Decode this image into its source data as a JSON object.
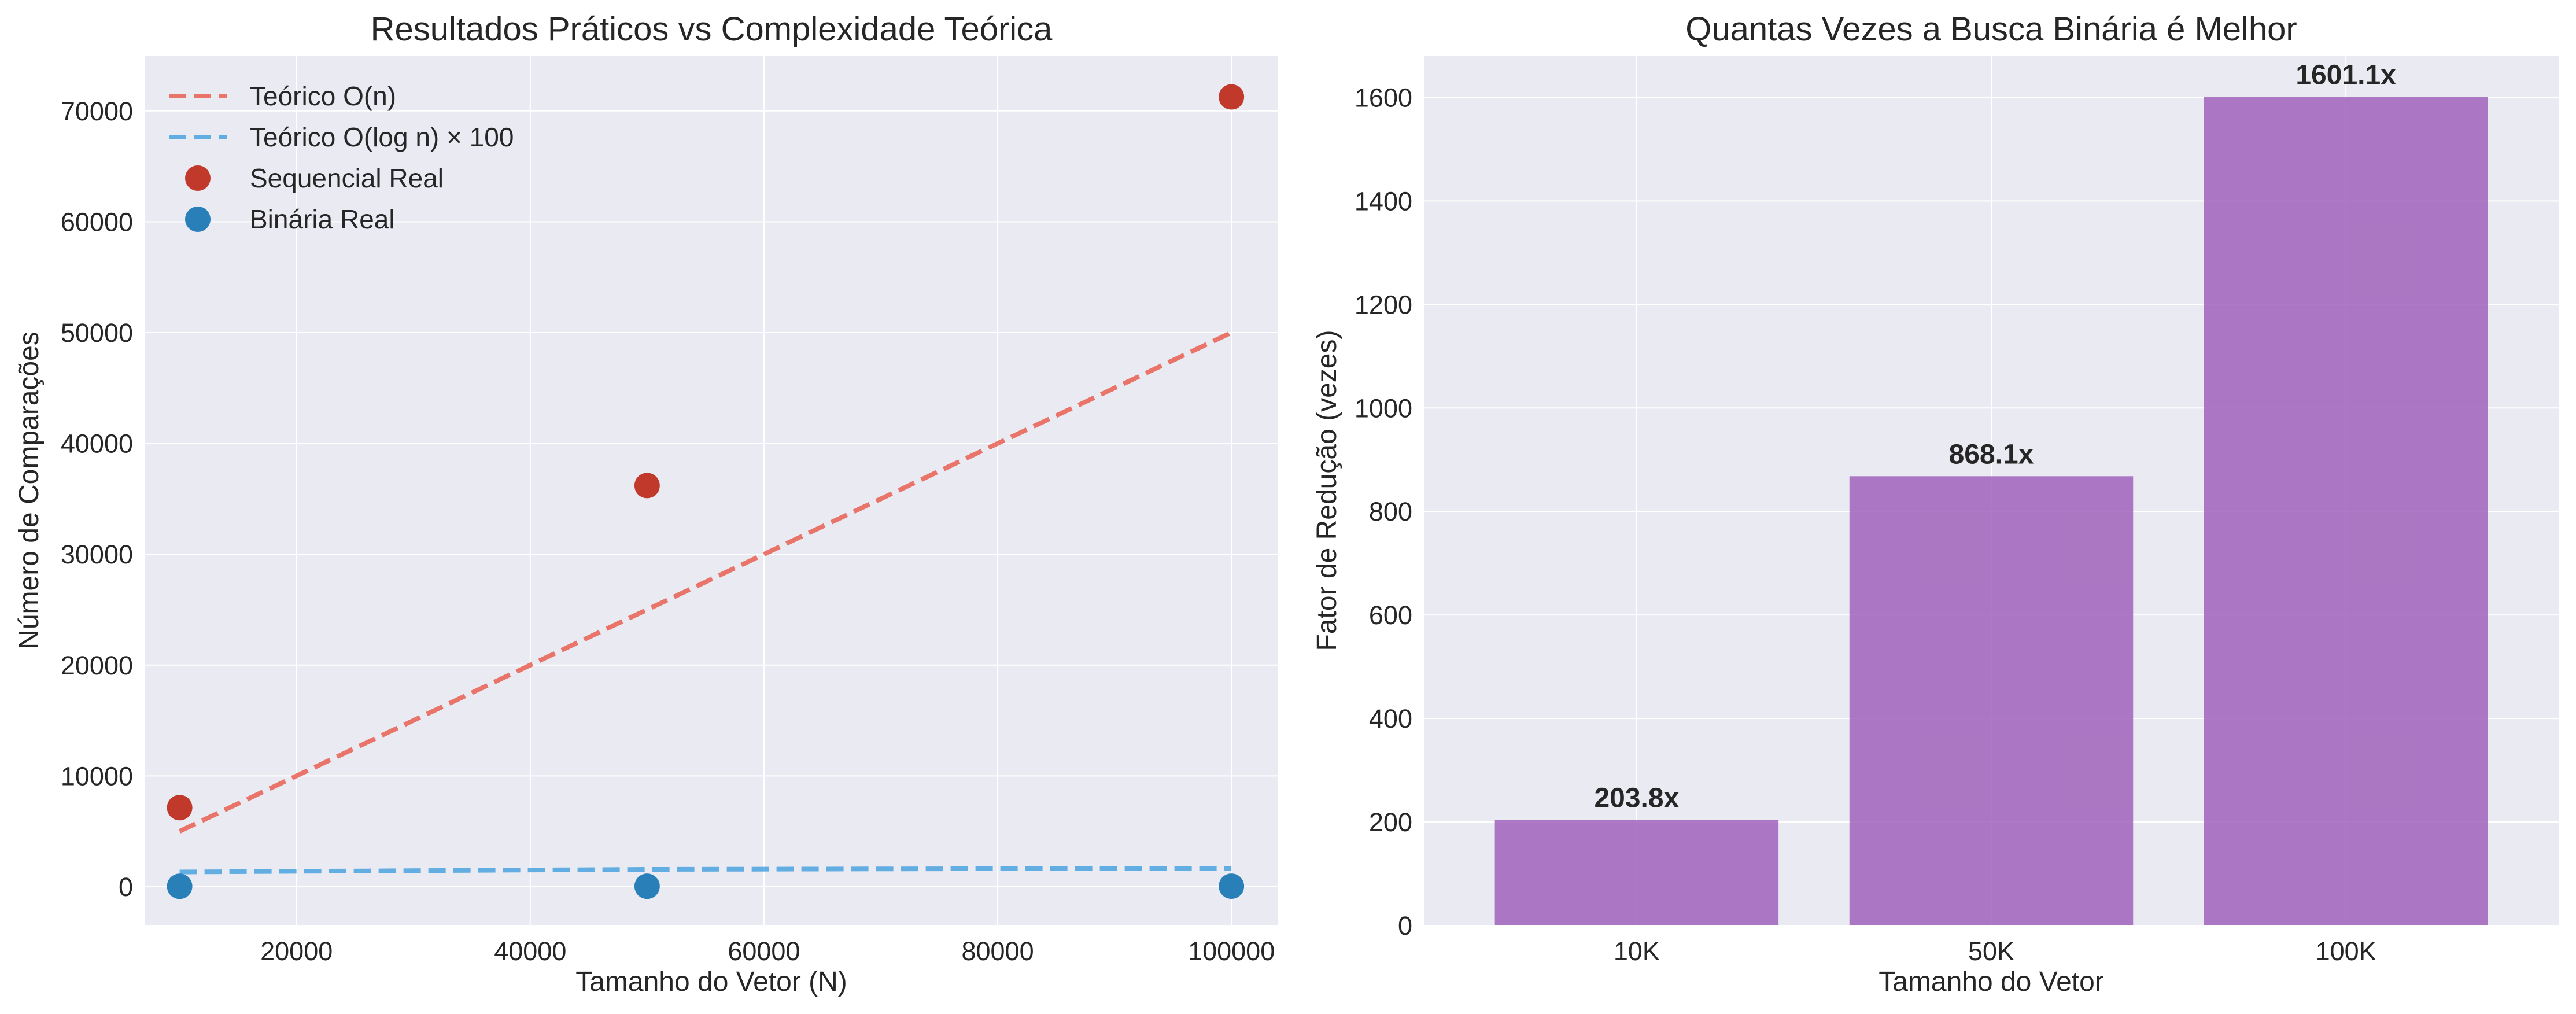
{
  "colors": {
    "background": "#eaeaf2",
    "grid": "#ffffff",
    "sequential": "#c0392b",
    "binary": "#2980b9",
    "theory_n": "#e74c3c",
    "theory_log": "#3498db",
    "bars": "#9b59b6"
  },
  "chart_data": [
    {
      "type": "scatter",
      "title": "Resultados Práticos vs Complexidade Teórica",
      "xlabel": "Tamanho do Vetor (N)",
      "ylabel": "Número de Comparações",
      "xlim": [
        7000,
        104000
      ],
      "ylim": [
        -3500,
        75000
      ],
      "xticks": [
        20000,
        40000,
        60000,
        80000,
        100000
      ],
      "yticks": [
        0,
        10000,
        20000,
        30000,
        40000,
        50000,
        60000,
        70000
      ],
      "grid": true,
      "legend_position": "top-left",
      "series": [
        {
          "name": "Teórico O(n)",
          "kind": "dashed-line",
          "color": "#e74c3c",
          "x": [
            10000,
            50000,
            100000
          ],
          "y": [
            5000,
            25000,
            50000
          ]
        },
        {
          "name": "Teórico O(log n) × 100",
          "kind": "dashed-line",
          "color": "#3498db",
          "x": [
            10000,
            50000,
            100000
          ],
          "y": [
            1329,
            1561,
            1661
          ]
        },
        {
          "name": "Sequencial Real",
          "kind": "points",
          "color": "#c0392b",
          "x": [
            10000,
            50000,
            100000
          ],
          "y": [
            7134,
            36197,
            71265
          ]
        },
        {
          "name": "Binária Real",
          "kind": "points",
          "color": "#2980b9",
          "x": [
            10000,
            50000,
            100000
          ],
          "y": [
            35,
            42,
            45
          ]
        }
      ]
    },
    {
      "type": "bar",
      "title": "Quantas Vezes a Busca Binária é Melhor",
      "xlabel": "Tamanho do Vetor",
      "ylabel": "Fator de Redução (vezes)",
      "categories": [
        "10K",
        "50K",
        "100K"
      ],
      "values": [
        203.8,
        868.1,
        1601.1
      ],
      "value_labels": [
        "203.8x",
        "868.1x",
        "1601.1x"
      ],
      "ylim": [
        0,
        1681
      ],
      "yticks": [
        0,
        200,
        400,
        600,
        800,
        1000,
        1200,
        1400,
        1600
      ],
      "grid": true
    }
  ]
}
